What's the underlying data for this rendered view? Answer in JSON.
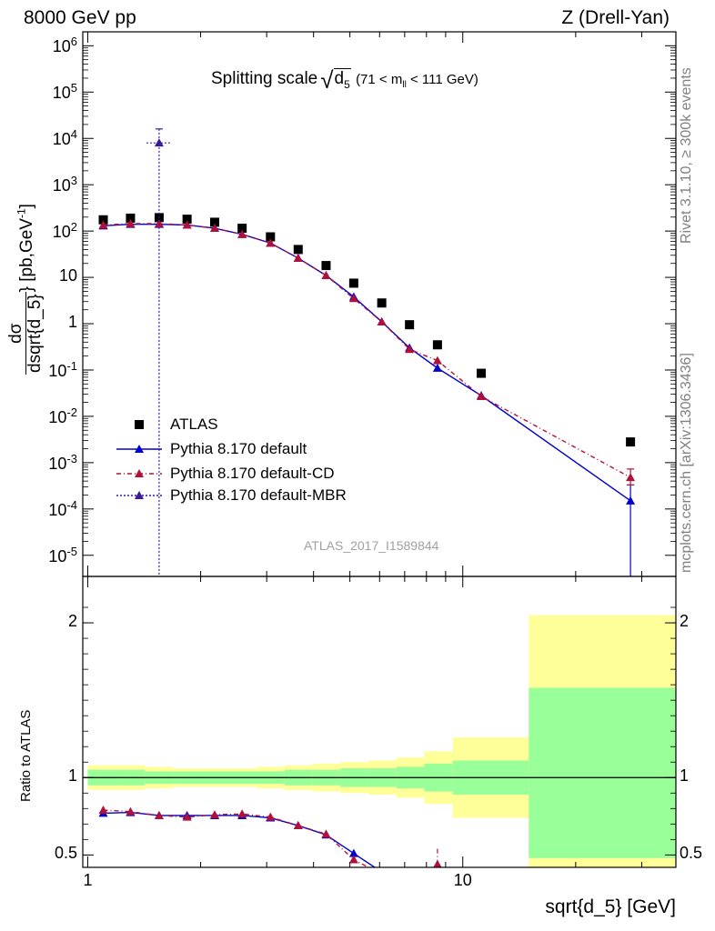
{
  "header": {
    "left": "8000 GeV pp",
    "right": "Z (Drell-Yan)"
  },
  "side": {
    "rivet": "Rivet 3.1.10, ≥ 300k events",
    "mcplots": "mcplots.cern.ch [arXiv:1306.3436]"
  },
  "analysis_tag": "ATLAS_2017_I1589844",
  "colors": {
    "atlas": "#000000",
    "default": "#0000cc",
    "cd": "#b0103a",
    "mbr": "#3a1a9c",
    "band_inner": "#99ff99",
    "band_outer": "#ffff99"
  },
  "chart_data": [
    {
      "type": "scatter",
      "panel": "main",
      "title": "Splitting scale √d₅ (71 < m_ll < 111 GeV)",
      "title_parts": {
        "pre": "Splitting scale",
        "d": "d",
        "d_sub": "5",
        "cut_pre": "(71 < m",
        "cut_sub": "ll",
        "cut_post": "< 111 GeV)"
      },
      "ylabel": "dσ/dsqrt{d_5} [pb,GeV⁻¹]",
      "ylabel_parts": {
        "num": "dσ",
        "den": "dsqrt{d_5}",
        "units_pre": "} [pb,GeV",
        "units_sup": "-1",
        "units_post": "]"
      },
      "x_scale": "log",
      "y_scale": "log",
      "xlim": [
        0.97,
        37
      ],
      "ylim": [
        3.5e-06,
        2000000.0
      ],
      "y_ticks": [
        {
          "v": 1000000.0,
          "base": "10",
          "exp": "6"
        },
        {
          "v": 100000.0,
          "base": "10",
          "exp": "5"
        },
        {
          "v": 10000.0,
          "base": "10",
          "exp": "4"
        },
        {
          "v": 1000.0,
          "base": "10",
          "exp": "3"
        },
        {
          "v": 100.0,
          "base": "10",
          "exp": "2"
        },
        {
          "v": 10,
          "base": "10",
          "exp": ""
        },
        {
          "v": 1,
          "base": "1",
          "exp": ""
        },
        {
          "v": 0.1,
          "base": "10",
          "exp": "-1"
        },
        {
          "v": 0.01,
          "base": "10",
          "exp": "-2"
        },
        {
          "v": 0.001,
          "base": "10",
          "exp": "-3"
        },
        {
          "v": 0.0001,
          "base": "10",
          "exp": "-4"
        },
        {
          "v": 1e-05,
          "base": "10",
          "exp": "-5"
        }
      ],
      "legend_position": "lower-left",
      "series": [
        {
          "name": "ATLAS",
          "style": "square",
          "x": [
            1.1,
            1.3,
            1.55,
            1.84,
            2.18,
            2.58,
            3.07,
            3.64,
            4.32,
            5.12,
            6.08,
            7.21,
            8.56,
            11.2,
            28.0
          ],
          "y": [
            175,
            190,
            195,
            180,
            155,
            115,
            75,
            40,
            18,
            7.5,
            2.8,
            0.95,
            0.35,
            0.085,
            0.0028
          ]
        },
        {
          "name": "Pythia 8.170 default",
          "style": "solid",
          "x": [
            1.1,
            1.3,
            1.55,
            1.84,
            2.18,
            2.58,
            3.07,
            3.64,
            4.32,
            5.12,
            6.08,
            7.21,
            8.56,
            11.2,
            28.0
          ],
          "y": [
            130,
            140,
            140,
            135,
            115,
            85,
            55,
            26,
            11,
            3.8,
            1.1,
            0.3,
            0.11,
            0.028,
            0.00015
          ],
          "yerr_low": [
            0,
            0,
            0,
            0,
            0,
            0,
            0,
            0,
            0,
            0,
            0,
            0,
            0,
            0,
            0.00015
          ],
          "yerr_high": [
            0,
            0,
            0,
            0,
            0,
            0,
            0,
            0,
            0,
            0,
            0,
            0,
            0,
            0,
            0.00018
          ]
        },
        {
          "name": "Pythia 8.170 default-CD",
          "style": "dashdot",
          "x": [
            1.1,
            1.3,
            1.55,
            1.84,
            2.18,
            2.58,
            3.07,
            3.64,
            4.32,
            5.12,
            6.08,
            7.21,
            8.56,
            11.2,
            28.0
          ],
          "y": [
            135,
            145,
            145,
            135,
            115,
            85,
            55,
            26,
            11,
            3.5,
            1.1,
            0.28,
            0.16,
            0.027,
            0.00048
          ],
          "yerr_low": [
            0,
            0,
            0,
            0,
            0,
            0,
            0,
            0,
            0,
            0,
            0,
            0,
            0,
            0,
            0.00015
          ],
          "yerr_high": [
            0,
            0,
            0,
            0,
            0,
            0,
            0,
            0,
            0,
            0,
            0,
            0,
            0,
            0,
            0.00025
          ]
        },
        {
          "name": "Pythia 8.170 default-MBR",
          "style": "dotted",
          "x": [
            1.55
          ],
          "y": [
            8000
          ],
          "yerr_low": [
            8000
          ],
          "yerr_high": [
            8000
          ]
        }
      ]
    },
    {
      "type": "scatter",
      "panel": "ratio",
      "ylabel": "Ratio to ATLAS",
      "xlabel": "sqrt{d_5} [GeV]",
      "x_scale": "log",
      "xlim": [
        0.97,
        37
      ],
      "ylim": [
        0.42,
        2.3
      ],
      "x_ticks": [
        {
          "v": 1,
          "label": "1"
        },
        {
          "v": 10,
          "label": "10"
        }
      ],
      "y_ticks": [
        {
          "v": 0.5,
          "label": "0.5"
        },
        {
          "v": 1,
          "label": "1"
        },
        {
          "v": 2,
          "label": "2"
        }
      ],
      "reference_line": 1,
      "bands": {
        "edges": [
          1.0,
          1.2,
          1.42,
          1.69,
          2.0,
          2.37,
          2.82,
          3.35,
          3.97,
          4.72,
          5.6,
          6.65,
          7.9,
          9.4,
          15.0,
          37.0
        ],
        "inner_low": [
          0.95,
          0.95,
          0.96,
          0.96,
          0.96,
          0.96,
          0.96,
          0.95,
          0.95,
          0.94,
          0.94,
          0.93,
          0.91,
          0.89,
          0.48
        ],
        "inner_high": [
          1.05,
          1.05,
          1.04,
          1.04,
          1.04,
          1.04,
          1.04,
          1.05,
          1.05,
          1.06,
          1.06,
          1.07,
          1.09,
          1.11,
          1.58
        ],
        "outer_low": [
          0.92,
          0.92,
          0.93,
          0.94,
          0.94,
          0.94,
          0.93,
          0.92,
          0.91,
          0.9,
          0.89,
          0.87,
          0.83,
          0.74,
          0.1
        ],
        "outer_high": [
          1.08,
          1.08,
          1.07,
          1.06,
          1.06,
          1.06,
          1.07,
          1.08,
          1.09,
          1.1,
          1.11,
          1.13,
          1.17,
          1.26,
          2.05
        ]
      },
      "series": [
        {
          "name": "Pythia 8.170 default",
          "style": "solid",
          "x": [
            1.1,
            1.3,
            1.55,
            1.84,
            2.18,
            2.58,
            3.07,
            3.64,
            4.32,
            5.12,
            6.08,
            6.5
          ],
          "y": [
            0.77,
            0.775,
            0.755,
            0.755,
            0.755,
            0.755,
            0.74,
            0.69,
            0.63,
            0.51,
            0.39,
            0.33
          ],
          "yerr": [
            0.01,
            0.01,
            0.01,
            0.01,
            0.01,
            0.01,
            0.01,
            0.01,
            0.015,
            0.02,
            0.03,
            0
          ]
        },
        {
          "name": "Pythia 8.170 default-CD",
          "style": "dashdot",
          "x": [
            1.1,
            1.3,
            1.55,
            1.84,
            2.18,
            2.58,
            3.07,
            3.64,
            4.32,
            5.12,
            6.08,
            6.5,
            8.2,
            8.56,
            9.2
          ],
          "y": [
            0.79,
            0.78,
            0.755,
            0.745,
            0.76,
            0.765,
            0.745,
            0.69,
            0.635,
            0.47,
            0.375,
            0.33,
            0.33,
            0.44,
            0.38
          ],
          "yerr": [
            0.01,
            0.01,
            0.01,
            0.01,
            0.01,
            0.01,
            0.01,
            0.01,
            0.015,
            0.02,
            0.03,
            0,
            0,
            0.1,
            0
          ]
        }
      ]
    }
  ]
}
